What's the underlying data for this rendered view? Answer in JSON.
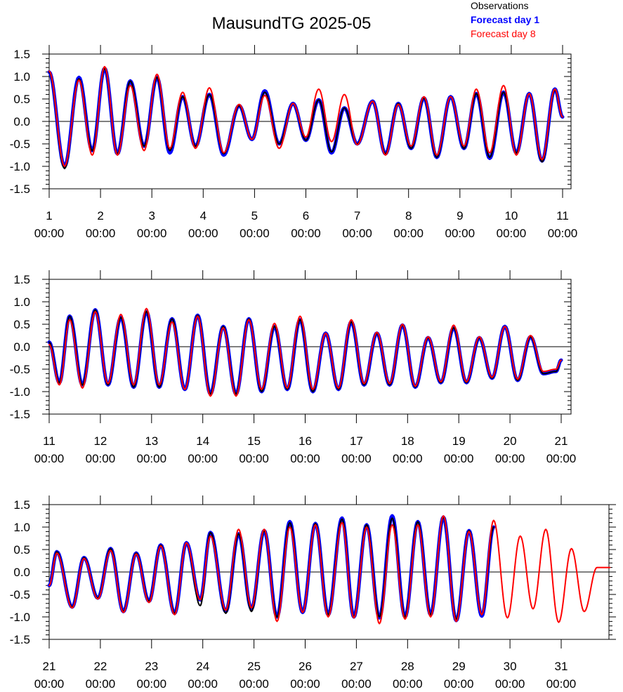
{
  "title": "MausundTG 2025-05",
  "legend": [
    {
      "label": "Observations",
      "color": "#000000",
      "bold": false
    },
    {
      "label": "Forecast day 1",
      "color": "#0000ff",
      "bold": true
    },
    {
      "label": "Forecast day 8",
      "color": "#ff0000",
      "bold": false
    }
  ],
  "chart_data": [
    {
      "type": "line",
      "panel": 1,
      "xlim_days": [
        1,
        11
      ],
      "ylim": [
        -1.5,
        1.5
      ],
      "y_ticks": [
        "1.5",
        "1.0",
        "0.5",
        "0.0",
        "-0.5",
        "-1.0",
        "-1.5"
      ],
      "x_tick_days": [
        "1",
        "2",
        "3",
        "4",
        "5",
        "6",
        "7",
        "8",
        "9",
        "10",
        "11"
      ],
      "x_tick_time": "00:00",
      "extrema_day": [
        1.0,
        1.3,
        1.58,
        1.84,
        2.08,
        2.33,
        2.58,
        2.85,
        3.1,
        3.35,
        3.6,
        3.85,
        4.12,
        4.4,
        4.7,
        4.95,
        5.2,
        5.48,
        5.75,
        6.0,
        6.25,
        6.5,
        6.75,
        7.0,
        7.3,
        7.55,
        7.8,
        8.05,
        8.3,
        8.55,
        8.82,
        9.08,
        9.32,
        9.58,
        9.85,
        10.1,
        10.35,
        10.6,
        10.85,
        11.0
      ],
      "series": [
        {
          "name": "Observations",
          "values": [
            1.1,
            -1.05,
            0.95,
            -0.65,
            1.18,
            -0.72,
            0.9,
            -0.55,
            0.98,
            -0.65,
            0.55,
            -0.55,
            0.6,
            -0.72,
            0.35,
            -0.4,
            0.65,
            -0.5,
            0.4,
            -0.42,
            0.48,
            -0.68,
            0.3,
            -0.5,
            0.45,
            -0.72,
            0.4,
            -0.6,
            0.52,
            -0.8,
            0.55,
            -0.6,
            0.62,
            -0.8,
            0.65,
            -0.7,
            0.62,
            -0.9,
            0.7,
            0.1
          ]
        },
        {
          "name": "Forecast day 1",
          "values": [
            1.1,
            -1.0,
            0.98,
            -0.65,
            1.18,
            -0.72,
            0.9,
            -0.55,
            0.98,
            -0.7,
            0.55,
            -0.55,
            0.6,
            -0.75,
            0.35,
            -0.4,
            0.68,
            -0.5,
            0.4,
            -0.42,
            0.48,
            -0.7,
            0.3,
            -0.5,
            0.45,
            -0.72,
            0.4,
            -0.6,
            0.52,
            -0.8,
            0.55,
            -0.6,
            0.62,
            -0.82,
            0.65,
            -0.7,
            0.62,
            -0.88,
            0.72,
            0.1
          ]
        },
        {
          "name": "Forecast day 8",
          "values": [
            1.12,
            -1.0,
            0.92,
            -0.75,
            1.22,
            -0.75,
            0.8,
            -0.65,
            1.05,
            -0.6,
            0.65,
            -0.6,
            0.75,
            -0.7,
            0.38,
            -0.4,
            0.58,
            -0.6,
            0.4,
            -0.35,
            0.72,
            -0.45,
            0.6,
            -0.52,
            0.45,
            -0.75,
            0.38,
            -0.55,
            0.55,
            -0.75,
            0.55,
            -0.55,
            0.72,
            -0.7,
            0.8,
            -0.75,
            0.62,
            -0.85,
            0.72,
            0.1
          ]
        }
      ]
    },
    {
      "type": "line",
      "panel": 2,
      "xlim_days": [
        11,
        21
      ],
      "ylim": [
        -1.5,
        1.5
      ],
      "y_ticks": [
        "1.5",
        "1.0",
        "0.5",
        "0.0",
        "-0.5",
        "-1.0",
        "-1.5"
      ],
      "x_tick_days": [
        "11",
        "12",
        "13",
        "14",
        "15",
        "16",
        "17",
        "18",
        "19",
        "20",
        "21"
      ],
      "x_tick_time": "00:00",
      "extrema_day": [
        11.0,
        11.2,
        11.4,
        11.65,
        11.9,
        12.15,
        12.4,
        12.65,
        12.9,
        13.15,
        13.4,
        13.65,
        13.9,
        14.15,
        14.4,
        14.65,
        14.9,
        15.15,
        15.4,
        15.65,
        15.9,
        16.15,
        16.4,
        16.65,
        16.9,
        17.15,
        17.4,
        17.65,
        17.9,
        18.15,
        18.4,
        18.65,
        18.9,
        19.15,
        19.4,
        19.65,
        19.9,
        20.15,
        20.4,
        20.65,
        20.9,
        21.0
      ],
      "series": [
        {
          "name": "Observations",
          "values": [
            0.1,
            -0.8,
            0.68,
            -0.85,
            0.82,
            -0.85,
            0.65,
            -0.9,
            0.78,
            -0.9,
            0.62,
            -0.95,
            0.7,
            -1.05,
            0.45,
            -1.05,
            0.62,
            -1.0,
            0.45,
            -0.95,
            0.6,
            -1.0,
            0.3,
            -0.95,
            0.55,
            -0.85,
            0.3,
            -0.85,
            0.48,
            -0.9,
            0.2,
            -0.8,
            0.42,
            -0.8,
            0.2,
            -0.7,
            0.45,
            -0.75,
            0.22,
            -0.6,
            -0.55,
            -0.3
          ]
        },
        {
          "name": "Forecast day 1",
          "values": [
            0.1,
            -0.8,
            0.68,
            -0.85,
            0.82,
            -0.85,
            0.65,
            -0.9,
            0.78,
            -0.9,
            0.62,
            -0.95,
            0.7,
            -1.05,
            0.45,
            -1.05,
            0.62,
            -1.0,
            0.45,
            -0.95,
            0.6,
            -1.0,
            0.3,
            -0.95,
            0.55,
            -0.85,
            0.3,
            -0.85,
            0.48,
            -0.9,
            0.2,
            -0.8,
            0.42,
            -0.8,
            0.2,
            -0.7,
            0.45,
            -0.75,
            0.22,
            -0.6,
            -0.55,
            -0.3
          ]
        },
        {
          "name": "Forecast day 8",
          "values": [
            0.05,
            -0.85,
            0.6,
            -0.92,
            0.78,
            -0.82,
            0.72,
            -0.85,
            0.85,
            -0.85,
            0.55,
            -0.95,
            0.68,
            -1.1,
            0.42,
            -1.1,
            0.6,
            -0.95,
            0.52,
            -0.92,
            0.68,
            -0.95,
            0.3,
            -0.92,
            0.6,
            -0.82,
            0.32,
            -0.82,
            0.5,
            -0.88,
            0.22,
            -0.78,
            0.48,
            -0.78,
            0.22,
            -0.68,
            0.45,
            -0.72,
            0.25,
            -0.55,
            -0.5,
            -0.3
          ]
        }
      ]
    },
    {
      "type": "line",
      "panel": 3,
      "xlim_days": [
        21,
        32
      ],
      "ylim": [
        -1.5,
        1.5
      ],
      "y_ticks": [
        "1.5",
        "1.0",
        "0.5",
        "0.0",
        "-0.5",
        "-1.0",
        "-1.5"
      ],
      "x_tick_days": [
        "21",
        "22",
        "23",
        "24",
        "25",
        "26",
        "27",
        "28",
        "29",
        "30",
        "31"
      ],
      "x_tick_time": "00:00",
      "extrema_day": [
        21.0,
        21.15,
        21.45,
        21.68,
        21.95,
        22.2,
        22.45,
        22.7,
        22.95,
        23.18,
        23.45,
        23.68,
        23.95,
        24.15,
        24.45,
        24.7,
        24.95,
        25.2,
        25.45,
        25.7,
        25.95,
        26.2,
        26.45,
        26.72,
        26.95,
        27.2,
        27.45,
        27.7,
        27.95,
        28.2,
        28.45,
        28.7,
        28.95,
        29.2,
        29.45,
        29.68,
        29.95,
        30.2,
        30.45,
        30.7,
        30.95,
        31.2,
        31.45,
        31.7,
        31.95
      ],
      "obs_end_day": 29.95,
      "series": [
        {
          "name": "Observations",
          "values": [
            -0.3,
            0.45,
            -0.78,
            0.32,
            -0.58,
            0.52,
            -0.88,
            0.42,
            -0.65,
            0.6,
            -0.92,
            0.65,
            -0.75,
            0.88,
            -0.92,
            0.85,
            -0.88,
            0.92,
            -1.0,
            1.1,
            -0.9,
            1.08,
            -0.95,
            1.18,
            -1.0,
            1.05,
            -1.0,
            1.2,
            -1.0,
            1.12,
            -0.95,
            1.22,
            -1.05,
            0.92,
            -0.95,
            1.0
          ]
        },
        {
          "name": "Forecast day 1",
          "values": [
            -0.3,
            0.45,
            -0.78,
            0.32,
            -0.58,
            0.52,
            -0.88,
            0.42,
            -0.65,
            0.6,
            -0.92,
            0.65,
            -0.62,
            0.88,
            -0.88,
            0.85,
            -0.82,
            0.92,
            -1.0,
            1.12,
            -0.9,
            1.08,
            -0.95,
            1.2,
            -1.0,
            1.05,
            -1.02,
            1.25,
            -1.0,
            1.12,
            -0.95,
            1.22,
            -1.08,
            0.92,
            -0.98,
            1.0
          ]
        },
        {
          "name": "Forecast day 8",
          "values": [
            -0.3,
            0.42,
            -0.8,
            0.3,
            -0.6,
            0.48,
            -0.9,
            0.4,
            -0.68,
            0.58,
            -0.95,
            0.65,
            -0.62,
            0.8,
            -0.85,
            0.95,
            -0.8,
            0.95,
            -1.1,
            1.0,
            -0.9,
            1.05,
            -1.0,
            1.1,
            -1.02,
            1.0,
            -1.15,
            1.05,
            -1.05,
            1.05,
            -1.0,
            1.25,
            -1.1,
            0.9,
            -0.95,
            1.15,
            -1.02,
            0.8,
            -0.82,
            0.95,
            -1.12,
            0.52,
            -0.88,
            0.1,
            0.1
          ]
        }
      ]
    }
  ]
}
